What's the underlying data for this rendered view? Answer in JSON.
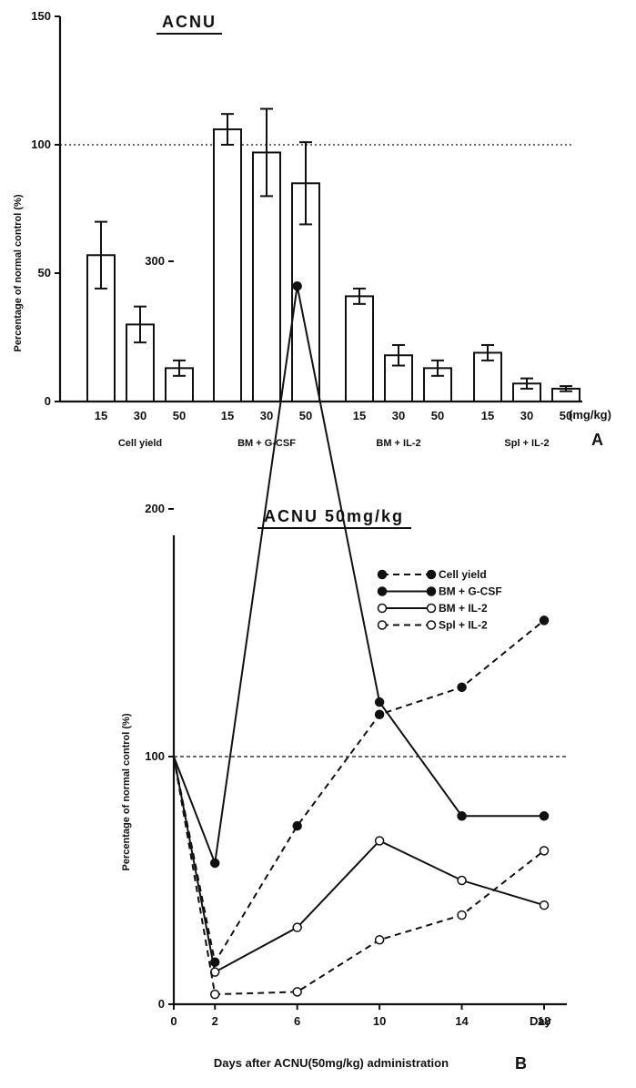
{
  "chart_data": [
    {
      "type": "bar",
      "title": "ACNU",
      "panel_label": "A",
      "ylabel": "Percentage of normal control (%)",
      "ylim": [
        0,
        150
      ],
      "yticks": [
        0,
        50,
        100,
        150
      ],
      "reference_line": 100,
      "dose_unit": "(mg/kg)",
      "groups": [
        {
          "name": "Cell yield",
          "doses": [
            "15",
            "30",
            "50"
          ],
          "values": [
            57,
            30,
            13
          ],
          "errors": [
            13,
            7,
            3
          ]
        },
        {
          "name": "BM + G-CSF",
          "doses": [
            "15",
            "30",
            "50"
          ],
          "values": [
            106,
            97,
            85
          ],
          "errors": [
            6,
            17,
            16
          ]
        },
        {
          "name": "BM + IL-2",
          "doses": [
            "15",
            "30",
            "50"
          ],
          "values": [
            41,
            18,
            13
          ],
          "errors": [
            3,
            4,
            3
          ]
        },
        {
          "name": "Spl + IL-2",
          "doses": [
            "15",
            "30",
            "50"
          ],
          "values": [
            19,
            7,
            5
          ],
          "errors": [
            3,
            2,
            1
          ]
        }
      ]
    },
    {
      "type": "line",
      "title": "ACNU 50mg/kg",
      "panel_label": "B",
      "ylabel": "Percentage of normal control (%)",
      "xlabel": "Days after ACNU(50mg/kg) administration",
      "x_unit": "Day",
      "x": [
        0,
        2,
        6,
        10,
        14,
        18
      ],
      "xticks": [
        0,
        2,
        6,
        10,
        14,
        18
      ],
      "yticks": [
        0,
        100,
        200,
        300
      ],
      "ylim": [
        0,
        340
      ],
      "xlim": [
        0,
        20
      ],
      "reference_line": 100,
      "series": [
        {
          "name": "Cell yield",
          "marker": "filled",
          "line": "dashed",
          "values": [
            100,
            17,
            72,
            117,
            128,
            155
          ]
        },
        {
          "name": "BM + G-CSF",
          "marker": "filled",
          "line": "solid",
          "values": [
            100,
            57,
            290,
            122,
            76,
            76
          ]
        },
        {
          "name": "BM + IL-2",
          "marker": "open",
          "line": "solid",
          "values": [
            100,
            13,
            31,
            66,
            50,
            40
          ]
        },
        {
          "name": "Spl + IL-2",
          "marker": "open",
          "line": "dashed",
          "values": [
            100,
            4,
            5,
            26,
            36,
            62
          ]
        }
      ]
    }
  ]
}
